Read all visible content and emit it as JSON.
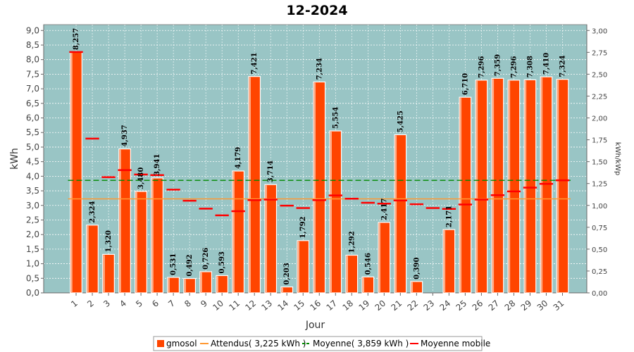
{
  "chart_data": {
    "type": "bar",
    "title": "12-2024",
    "xlabel": "Jour",
    "ylabel": "kWh",
    "y2label": "kWh/kWp",
    "ylim": [
      0,
      9.2
    ],
    "y2lim": [
      0,
      3.0667
    ],
    "yticks": [
      "0,0",
      "0,5",
      "1,0",
      "1,5",
      "2,0",
      "2,5",
      "3,0",
      "3,5",
      "4,0",
      "4,5",
      "5,0",
      "5,5",
      "6,0",
      "6,5",
      "7,0",
      "7,5",
      "8,0",
      "8,5",
      "9,0"
    ],
    "y2ticks": [
      "0,00",
      "0,25",
      "0,50",
      "0,75",
      "1,00",
      "1,25",
      "1,50",
      "1,75",
      "2,00",
      "2,25",
      "2,50",
      "2,75",
      "3,00"
    ],
    "categories": [
      "1",
      "2",
      "3",
      "4",
      "5",
      "6",
      "7",
      "8",
      "9",
      "10",
      "11",
      "12",
      "13",
      "14",
      "15",
      "16",
      "17",
      "18",
      "19",
      "20",
      "21",
      "22",
      "23",
      "24",
      "25",
      "26",
      "27",
      "28",
      "29",
      "30",
      "31"
    ],
    "series": [
      {
        "name": "gmosol",
        "color": "#ff4500",
        "values": [
          8.257,
          2.324,
          1.32,
          4.937,
          3.48,
          3.941,
          0.531,
          0.492,
          0.726,
          0.593,
          4.179,
          7.421,
          3.714,
          0.203,
          1.792,
          7.234,
          5.554,
          1.292,
          0.546,
          2.417,
          5.425,
          0.39,
          null,
          2.171,
          6.71,
          7.296,
          7.359,
          7.296,
          7.308,
          7.41,
          7.324
        ],
        "labels": [
          "8,257",
          "2,324",
          "1,320",
          "4,937",
          "3,480",
          "3,941",
          "0,531",
          "0,492",
          "0,726",
          "0,593",
          "4,179",
          "7,421",
          "3,714",
          "0,203",
          "1,792",
          "7,234",
          "5,554",
          "1,292",
          "0,546",
          "2,417",
          "5,425",
          "0,390",
          "",
          "2,171",
          "6,710",
          "7,296",
          "7,359",
          "7,296",
          "7,308",
          "7,410",
          "7,324"
        ]
      },
      {
        "name": "Attendus( 3,225 kWh )",
        "color": "#ff9933",
        "value": 3.225
      },
      {
        "name": "Moyenne( 3,859 kWh )",
        "color": "#008800",
        "value": 3.859
      },
      {
        "name": "Moyenne mobile",
        "color": "#ff0000",
        "values": [
          8.26,
          5.29,
          3.97,
          4.21,
          4.06,
          4.04,
          3.54,
          3.16,
          2.89,
          2.66,
          2.8,
          3.18,
          3.2,
          2.99,
          2.91,
          3.18,
          3.34,
          3.23,
          3.09,
          3.06,
          3.17,
          3.04,
          2.91,
          2.88,
          3.03,
          3.2,
          3.35,
          3.48,
          3.61,
          3.74,
          3.86
        ]
      }
    ],
    "legend": [
      "gmosol",
      "Attendus( 3,225 kWh )",
      "Moyenne( 3,859 kWh )",
      "Moyenne mobile"
    ],
    "legend_position": "bottom",
    "plot_background": "#99c5c5",
    "grid": true
  }
}
